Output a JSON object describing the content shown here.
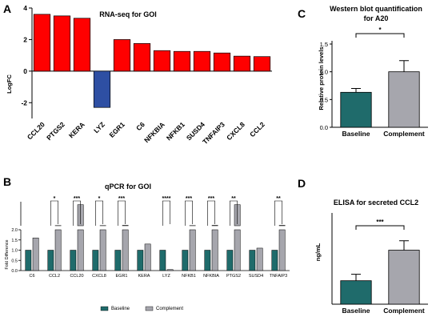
{
  "panel_labels": {
    "a": "A",
    "b": "B",
    "c": "C",
    "d": "D"
  },
  "chart_data": [
    {
      "id": "A",
      "type": "bar",
      "title": "RNA-seq for GOI",
      "xlabel": "",
      "ylabel": "LogFC",
      "ylim": [
        -3,
        4
      ],
      "yticks": [
        -2,
        0,
        2,
        4
      ],
      "yticklabels": [
        "-2",
        "0",
        "2",
        "4"
      ],
      "categories": [
        "CCL20",
        "PTGS2",
        "KERA",
        "LYZ",
        "EGR1",
        "C6",
        "NFKBIA",
        "NFKB1",
        "SUSD4",
        "TNFAIP3",
        "CXCL8",
        "CCL2"
      ],
      "values": [
        3.6,
        3.5,
        3.35,
        -2.3,
        2.0,
        1.75,
        1.3,
        1.25,
        1.25,
        1.15,
        0.95,
        0.92
      ],
      "colors": {
        "up": "#ff0000",
        "down": "#2e4fa3"
      },
      "grid": false
    },
    {
      "id": "B",
      "type": "bar",
      "title": "qPCR for GOI",
      "xlabel": "",
      "ylabel": "Fold Difference",
      "y_axis": "broken",
      "yticks_lower": [
        0.0,
        0.5,
        1.0,
        1.5,
        2.0
      ],
      "yticklabels_lower": [
        "0.0",
        "0.5",
        "1.0",
        "1.5",
        "2.0"
      ],
      "categories": [
        "C6",
        "CCL2",
        "CCL20",
        "CXCL8",
        "EGR1",
        "KERA",
        "LYZ",
        "NFKB1",
        "NFKBIA",
        "PTGS2",
        "SUSD4",
        "TNFAIP3"
      ],
      "series": [
        {
          "name": "Baseline",
          "values": [
            1,
            1,
            1,
            1,
            1,
            1,
            1,
            1,
            1,
            1,
            1,
            1
          ],
          "color": "#1f6b6b"
        },
        {
          "name": "Complement",
          "values": [
            1.6,
            2.6,
            24,
            2.6,
            2.8,
            1.3,
            0.05,
            2.6,
            2.8,
            24,
            1.1,
            2.8
          ],
          "color": "#a6a6ad"
        }
      ],
      "significance": [
        "",
        "*",
        "***",
        "*",
        "***",
        "",
        "****",
        "***",
        "***",
        "**",
        "",
        "**"
      ],
      "legend": "bottom"
    },
    {
      "id": "C",
      "type": "bar",
      "title": "Western blot quantification for A20",
      "xlabel": "",
      "ylabel": "Relative protein levels",
      "ylim": [
        0,
        1.5
      ],
      "yticks": [
        0.0,
        0.5,
        1.0,
        1.5
      ],
      "yticklabels": [
        "0.0",
        "0.5",
        "1.0",
        "1.5"
      ],
      "categories": [
        "Baseline",
        "Complement"
      ],
      "values": [
        0.63,
        1.0
      ],
      "errors": [
        0.07,
        0.2
      ],
      "colors": [
        "#1f6b6b",
        "#a6a6ad"
      ],
      "significance": "*"
    },
    {
      "id": "D",
      "type": "bar",
      "title": "ELISA for secreted CCL2",
      "xlabel": "",
      "ylabel": "ng/mL",
      "ylim": [
        0,
        15
      ],
      "yticks": [],
      "categories": [
        "Baseline",
        "Complement"
      ],
      "values": [
        4.0,
        9.2
      ],
      "errors": [
        1.1,
        1.6
      ],
      "colors": [
        "#1f6b6b",
        "#a6a6ad"
      ],
      "significance": "***"
    }
  ]
}
